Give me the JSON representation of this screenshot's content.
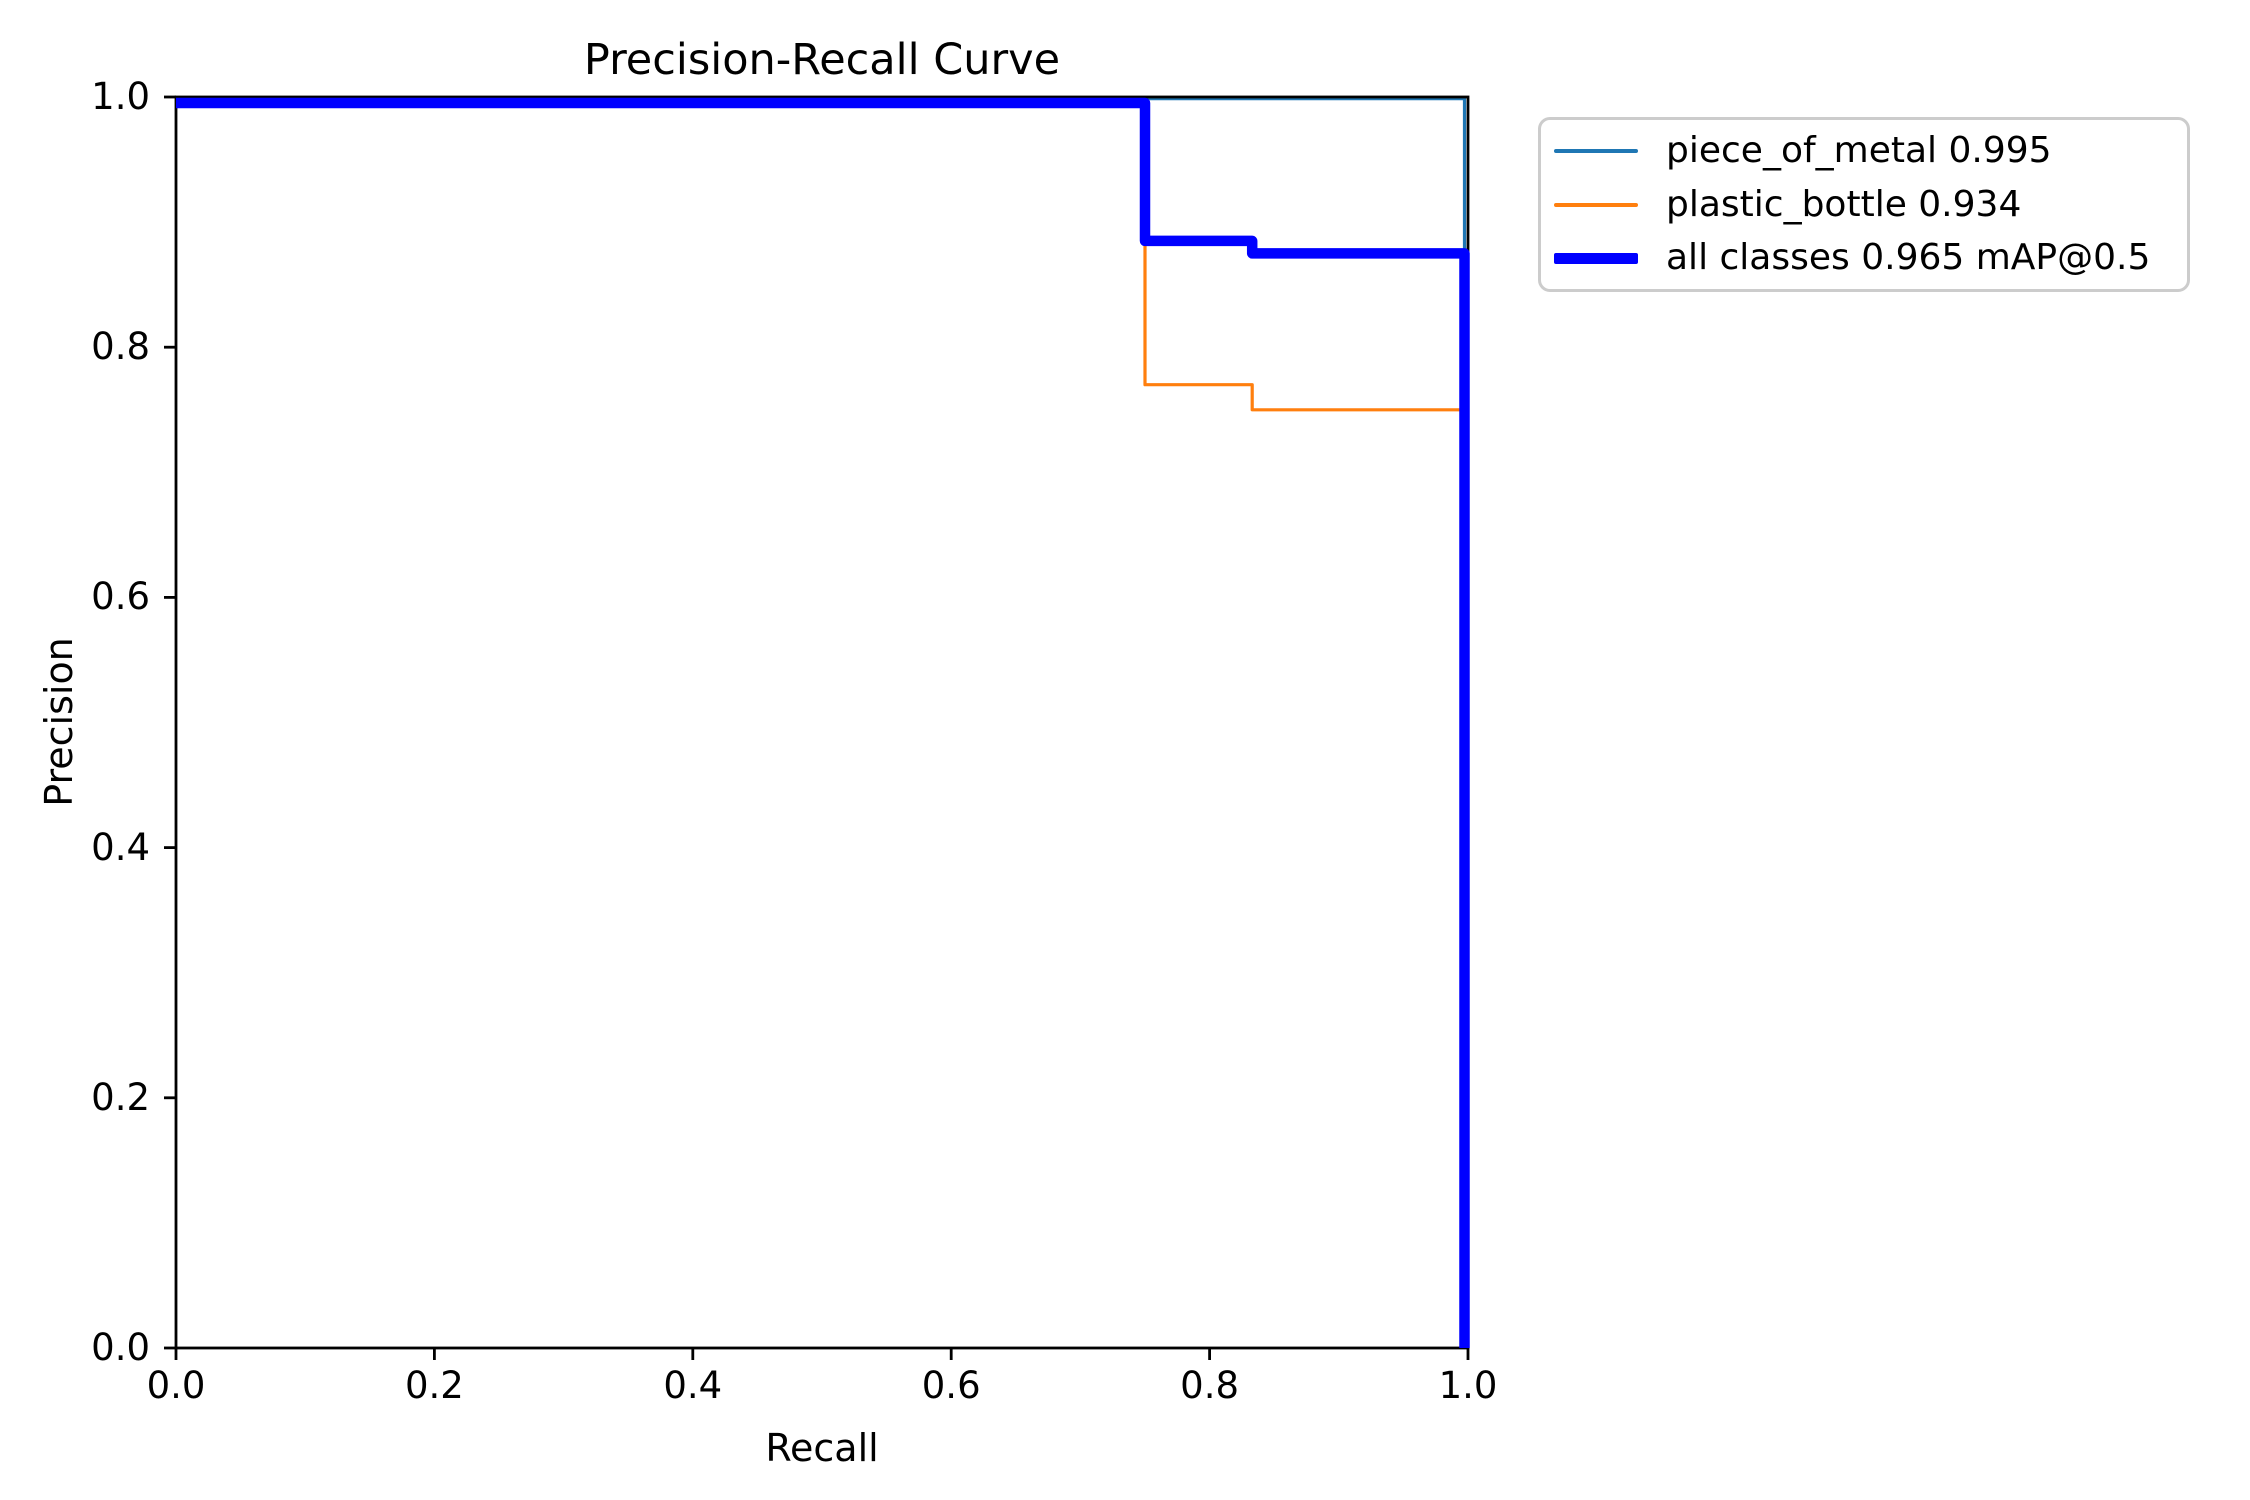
{
  "chart_data": {
    "type": "line",
    "title": "Precision-Recall Curve",
    "xlabel": "Recall",
    "ylabel": "Precision",
    "xlim": [
      0.0,
      1.0
    ],
    "ylim": [
      0.0,
      1.0
    ],
    "x_ticks": [
      "0.0",
      "0.2",
      "0.4",
      "0.6",
      "0.8",
      "1.0"
    ],
    "y_ticks": [
      "0.0",
      "0.2",
      "0.4",
      "0.6",
      "0.8",
      "1.0"
    ],
    "grid": false,
    "legend_position": "outside-upper-right",
    "legend_border_color": "#cccccc",
    "axis_color": "#000000",
    "series": [
      {
        "name": "piece_of_metal",
        "legend_label": "piece_of_metal 0.995",
        "ap": 0.995,
        "color": "#1f77b4",
        "linewidth": 3.2,
        "points": [
          [
            0.0,
            1.0
          ],
          [
            1.0,
            1.0
          ],
          [
            1.0,
            0.0
          ]
        ]
      },
      {
        "name": "plastic_bottle",
        "legend_label": "plastic_bottle 0.934",
        "ap": 0.934,
        "color": "#ff7f0e",
        "linewidth": 3.2,
        "points": [
          [
            0.0,
            1.0
          ],
          [
            0.75,
            1.0
          ],
          [
            0.75,
            0.77
          ],
          [
            0.833,
            0.77
          ],
          [
            0.833,
            0.75
          ],
          [
            1.0,
            0.75
          ],
          [
            1.0,
            0.0
          ]
        ]
      },
      {
        "name": "all classes",
        "legend_label": "all classes 0.965 mAP@0.5",
        "map_at_0_5": 0.965,
        "color": "#0000ff",
        "linewidth": 10.5,
        "points": [
          [
            0.0,
            1.0
          ],
          [
            0.75,
            1.0
          ],
          [
            0.75,
            0.885
          ],
          [
            0.833,
            0.885
          ],
          [
            0.833,
            0.875
          ],
          [
            1.0,
            0.875
          ],
          [
            1.0,
            0.0
          ]
        ]
      }
    ]
  }
}
